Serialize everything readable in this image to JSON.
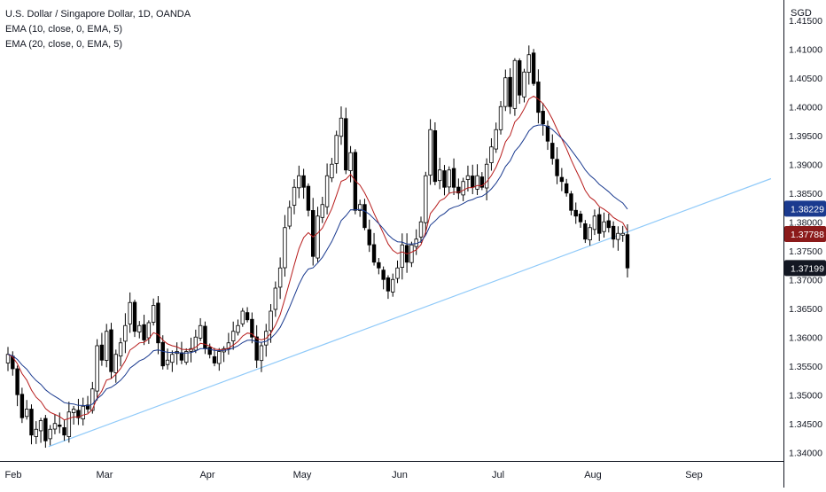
{
  "chart_data": {
    "type": "candlestick",
    "title": "U.S. Dollar / Singapore Dollar, 1D, OANDA",
    "indicators": [
      {
        "label": "EMA (10, close, 0, EMA, 5)",
        "color": "#b71c1c"
      },
      {
        "label": "EMA (20, close, 0, EMA, 5)",
        "color": "#1a3a8f"
      }
    ],
    "currency": "SGD",
    "y_axis": {
      "min": 1.3385,
      "max": 1.4185,
      "ticks": [
        "1.34000",
        "1.34500",
        "1.35000",
        "1.35500",
        "1.36000",
        "1.36500",
        "1.37000",
        "1.37500",
        "1.38000",
        "1.38500",
        "1.39000",
        "1.39500",
        "1.40000",
        "1.40500",
        "1.41000",
        "1.41500"
      ]
    },
    "x_axis": {
      "labels": [
        "Feb",
        "Mar",
        "Apr",
        "May",
        "Jun",
        "Jul",
        "Aug",
        "Sep"
      ]
    },
    "price_labels": [
      {
        "value": 1.38229,
        "text": "1.38229",
        "bg": "#1a3a8f"
      },
      {
        "value": 1.37788,
        "text": "1.37788",
        "bg": "#8b1a1a"
      },
      {
        "value": 1.37199,
        "text": "1.37199",
        "bg": "#131722"
      }
    ],
    "trendline": {
      "from": [
        "2021-02-12",
        1.341
      ],
      "to": [
        "2021-09-25",
        1.3875
      ],
      "color": "#90caf9"
    },
    "series_close": [
      1.357,
      1.3545,
      1.35,
      1.346,
      1.3475,
      1.343,
      1.344,
      1.3455,
      1.342,
      1.344,
      1.345,
      1.3445,
      1.343,
      1.347,
      1.3475,
      1.346,
      1.348,
      1.3475,
      1.351,
      1.3585,
      1.356,
      1.361,
      1.354,
      1.357,
      1.359,
      1.362,
      1.366,
      1.361,
      1.362,
      1.3595,
      1.3625,
      1.3655,
      1.359,
      1.355,
      1.356,
      1.357,
      1.3575,
      1.356,
      1.3575,
      1.358,
      1.36,
      1.362,
      1.358,
      1.357,
      1.3555,
      1.3575,
      1.358,
      1.359,
      1.361,
      1.362,
      1.3645,
      1.363,
      1.36,
      1.356,
      1.3585,
      1.361,
      1.3645,
      1.3685,
      1.372,
      1.379,
      1.3825,
      1.386,
      1.388,
      1.386,
      1.382,
      1.374,
      1.381,
      1.383,
      1.388,
      1.39,
      1.395,
      1.398,
      1.389,
      1.392,
      1.382,
      1.383,
      1.379,
      1.376,
      1.373,
      1.372,
      1.37,
      1.368,
      1.37,
      1.372,
      1.376,
      1.373,
      1.376,
      1.377,
      1.38,
      1.388,
      1.396,
      1.387,
      1.389,
      1.386,
      1.389,
      1.386,
      1.385,
      1.387,
      1.388,
      1.386,
      1.388,
      1.386,
      1.39,
      1.393,
      1.396,
      1.4,
      1.405,
      1.4,
      1.408,
      1.402,
      1.406,
      1.409,
      1.404,
      1.399,
      1.397,
      1.394,
      1.391,
      1.388,
      1.387,
      1.385,
      1.382,
      1.381,
      1.38,
      1.377,
      1.379,
      1.381,
      1.378,
      1.38,
      1.379,
      1.377,
      1.378,
      1.378,
      1.372
    ]
  }
}
